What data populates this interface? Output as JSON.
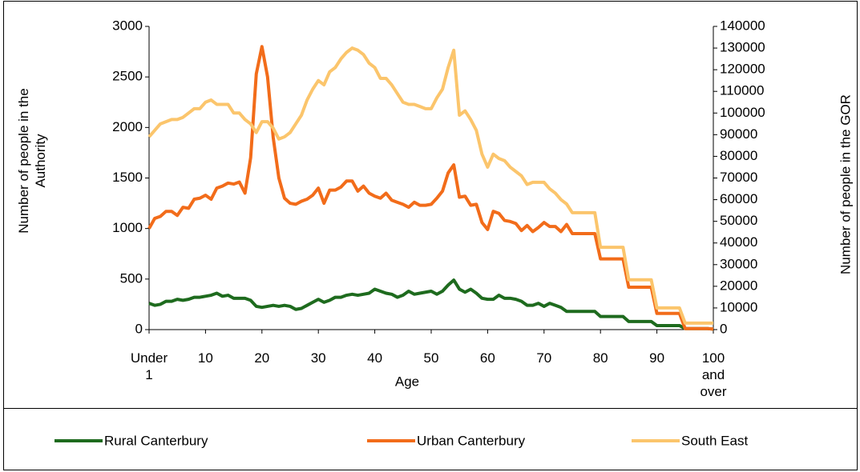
{
  "chart_data": {
    "type": "line",
    "x_label": "Age",
    "y_label": "Number of people in the Authority",
    "y2_label": "Number of people in the GOR",
    "categories": [
      "Under 1",
      null,
      null,
      null,
      null,
      null,
      null,
      null,
      null,
      null,
      "10",
      null,
      null,
      null,
      null,
      null,
      null,
      null,
      null,
      null,
      "20",
      null,
      null,
      null,
      null,
      null,
      null,
      null,
      null,
      null,
      "30",
      null,
      null,
      null,
      null,
      null,
      null,
      null,
      null,
      null,
      "40",
      null,
      null,
      null,
      null,
      null,
      null,
      null,
      null,
      null,
      "50",
      null,
      null,
      null,
      null,
      null,
      null,
      null,
      null,
      null,
      "60",
      null,
      null,
      null,
      null,
      null,
      null,
      null,
      null,
      null,
      "70",
      null,
      null,
      null,
      null,
      null,
      null,
      null,
      null,
      null,
      "80",
      null,
      null,
      null,
      null,
      null,
      null,
      null,
      null,
      null,
      "90",
      null,
      null,
      null,
      null,
      null,
      null,
      null,
      null,
      null,
      "100 and over"
    ],
    "ylim": [
      0,
      3000
    ],
    "yticks": [
      0,
      500,
      1000,
      1500,
      2000,
      2500,
      3000
    ],
    "y2lim": [
      0,
      140000
    ],
    "y2ticks": [
      0,
      10000,
      20000,
      30000,
      40000,
      50000,
      60000,
      70000,
      80000,
      90000,
      100000,
      110000,
      120000,
      130000,
      140000
    ],
    "series": [
      {
        "name": "Rural Canterbury",
        "color": "#1e6b1e",
        "values": [
          260,
          240,
          250,
          280,
          280,
          300,
          290,
          300,
          320,
          320,
          330,
          340,
          360,
          330,
          340,
          310,
          310,
          310,
          290,
          230,
          220,
          230,
          240,
          230,
          240,
          230,
          200,
          210,
          240,
          270,
          300,
          270,
          290,
          320,
          320,
          340,
          350,
          340,
          350,
          360,
          400,
          380,
          360,
          350,
          320,
          340,
          380,
          350,
          360,
          370,
          380,
          350,
          380,
          440,
          490,
          400,
          370,
          400,
          360,
          310,
          300,
          300,
          340,
          310,
          310,
          300,
          280,
          240,
          240,
          260,
          230,
          260,
          240,
          220,
          180,
          180,
          180,
          180,
          180,
          180,
          130,
          130,
          130,
          130,
          130,
          80,
          80,
          80,
          80,
          80,
          40,
          40,
          40,
          40,
          40,
          10,
          10,
          10,
          10,
          10,
          5
        ]
      },
      {
        "name": "Urban Canterbury",
        "color": "#f26c1a",
        "values": [
          1000,
          1100,
          1120,
          1170,
          1170,
          1130,
          1210,
          1200,
          1290,
          1300,
          1330,
          1290,
          1400,
          1420,
          1450,
          1440,
          1460,
          1350,
          1700,
          2530,
          2800,
          2500,
          1900,
          1500,
          1300,
          1250,
          1240,
          1270,
          1290,
          1330,
          1400,
          1250,
          1380,
          1380,
          1410,
          1470,
          1470,
          1370,
          1420,
          1350,
          1320,
          1300,
          1350,
          1280,
          1260,
          1240,
          1210,
          1260,
          1230,
          1230,
          1240,
          1300,
          1370,
          1550,
          1630,
          1310,
          1320,
          1230,
          1240,
          1060,
          990,
          1170,
          1150,
          1080,
          1070,
          1050,
          980,
          1030,
          970,
          1010,
          1060,
          1020,
          1020,
          970,
          1040,
          950,
          950,
          950,
          950,
          950,
          700,
          700,
          700,
          700,
          700,
          420,
          420,
          420,
          420,
          420,
          160,
          160,
          160,
          160,
          160,
          10,
          10,
          10,
          10,
          10,
          5
        ]
      },
      {
        "name": "South East",
        "color": "#fbc56c",
        "axis": "y2",
        "values": [
          89000,
          92000,
          95000,
          96000,
          97000,
          97000,
          98000,
          100000,
          102000,
          102000,
          105000,
          106000,
          104000,
          104000,
          104000,
          100000,
          100000,
          97000,
          95000,
          91000,
          96000,
          96000,
          93000,
          88000,
          89000,
          91000,
          95000,
          99000,
          106000,
          111000,
          115000,
          113000,
          119000,
          121000,
          125000,
          128000,
          130000,
          129000,
          127000,
          123000,
          121000,
          116000,
          116000,
          113000,
          109000,
          105000,
          104000,
          104000,
          103000,
          102000,
          102000,
          107000,
          111000,
          121000,
          129000,
          99000,
          101000,
          97000,
          92000,
          81000,
          75000,
          81000,
          79000,
          78000,
          75000,
          73000,
          71000,
          67000,
          68000,
          68000,
          68000,
          65000,
          63000,
          60000,
          58000,
          54000,
          54000,
          54000,
          54000,
          54000,
          38000,
          38000,
          38000,
          38000,
          38000,
          23000,
          23000,
          23000,
          23000,
          23000,
          10000,
          10000,
          10000,
          10000,
          10000,
          3000,
          3000,
          3000,
          3000,
          3000,
          3000
        ]
      }
    ]
  }
}
